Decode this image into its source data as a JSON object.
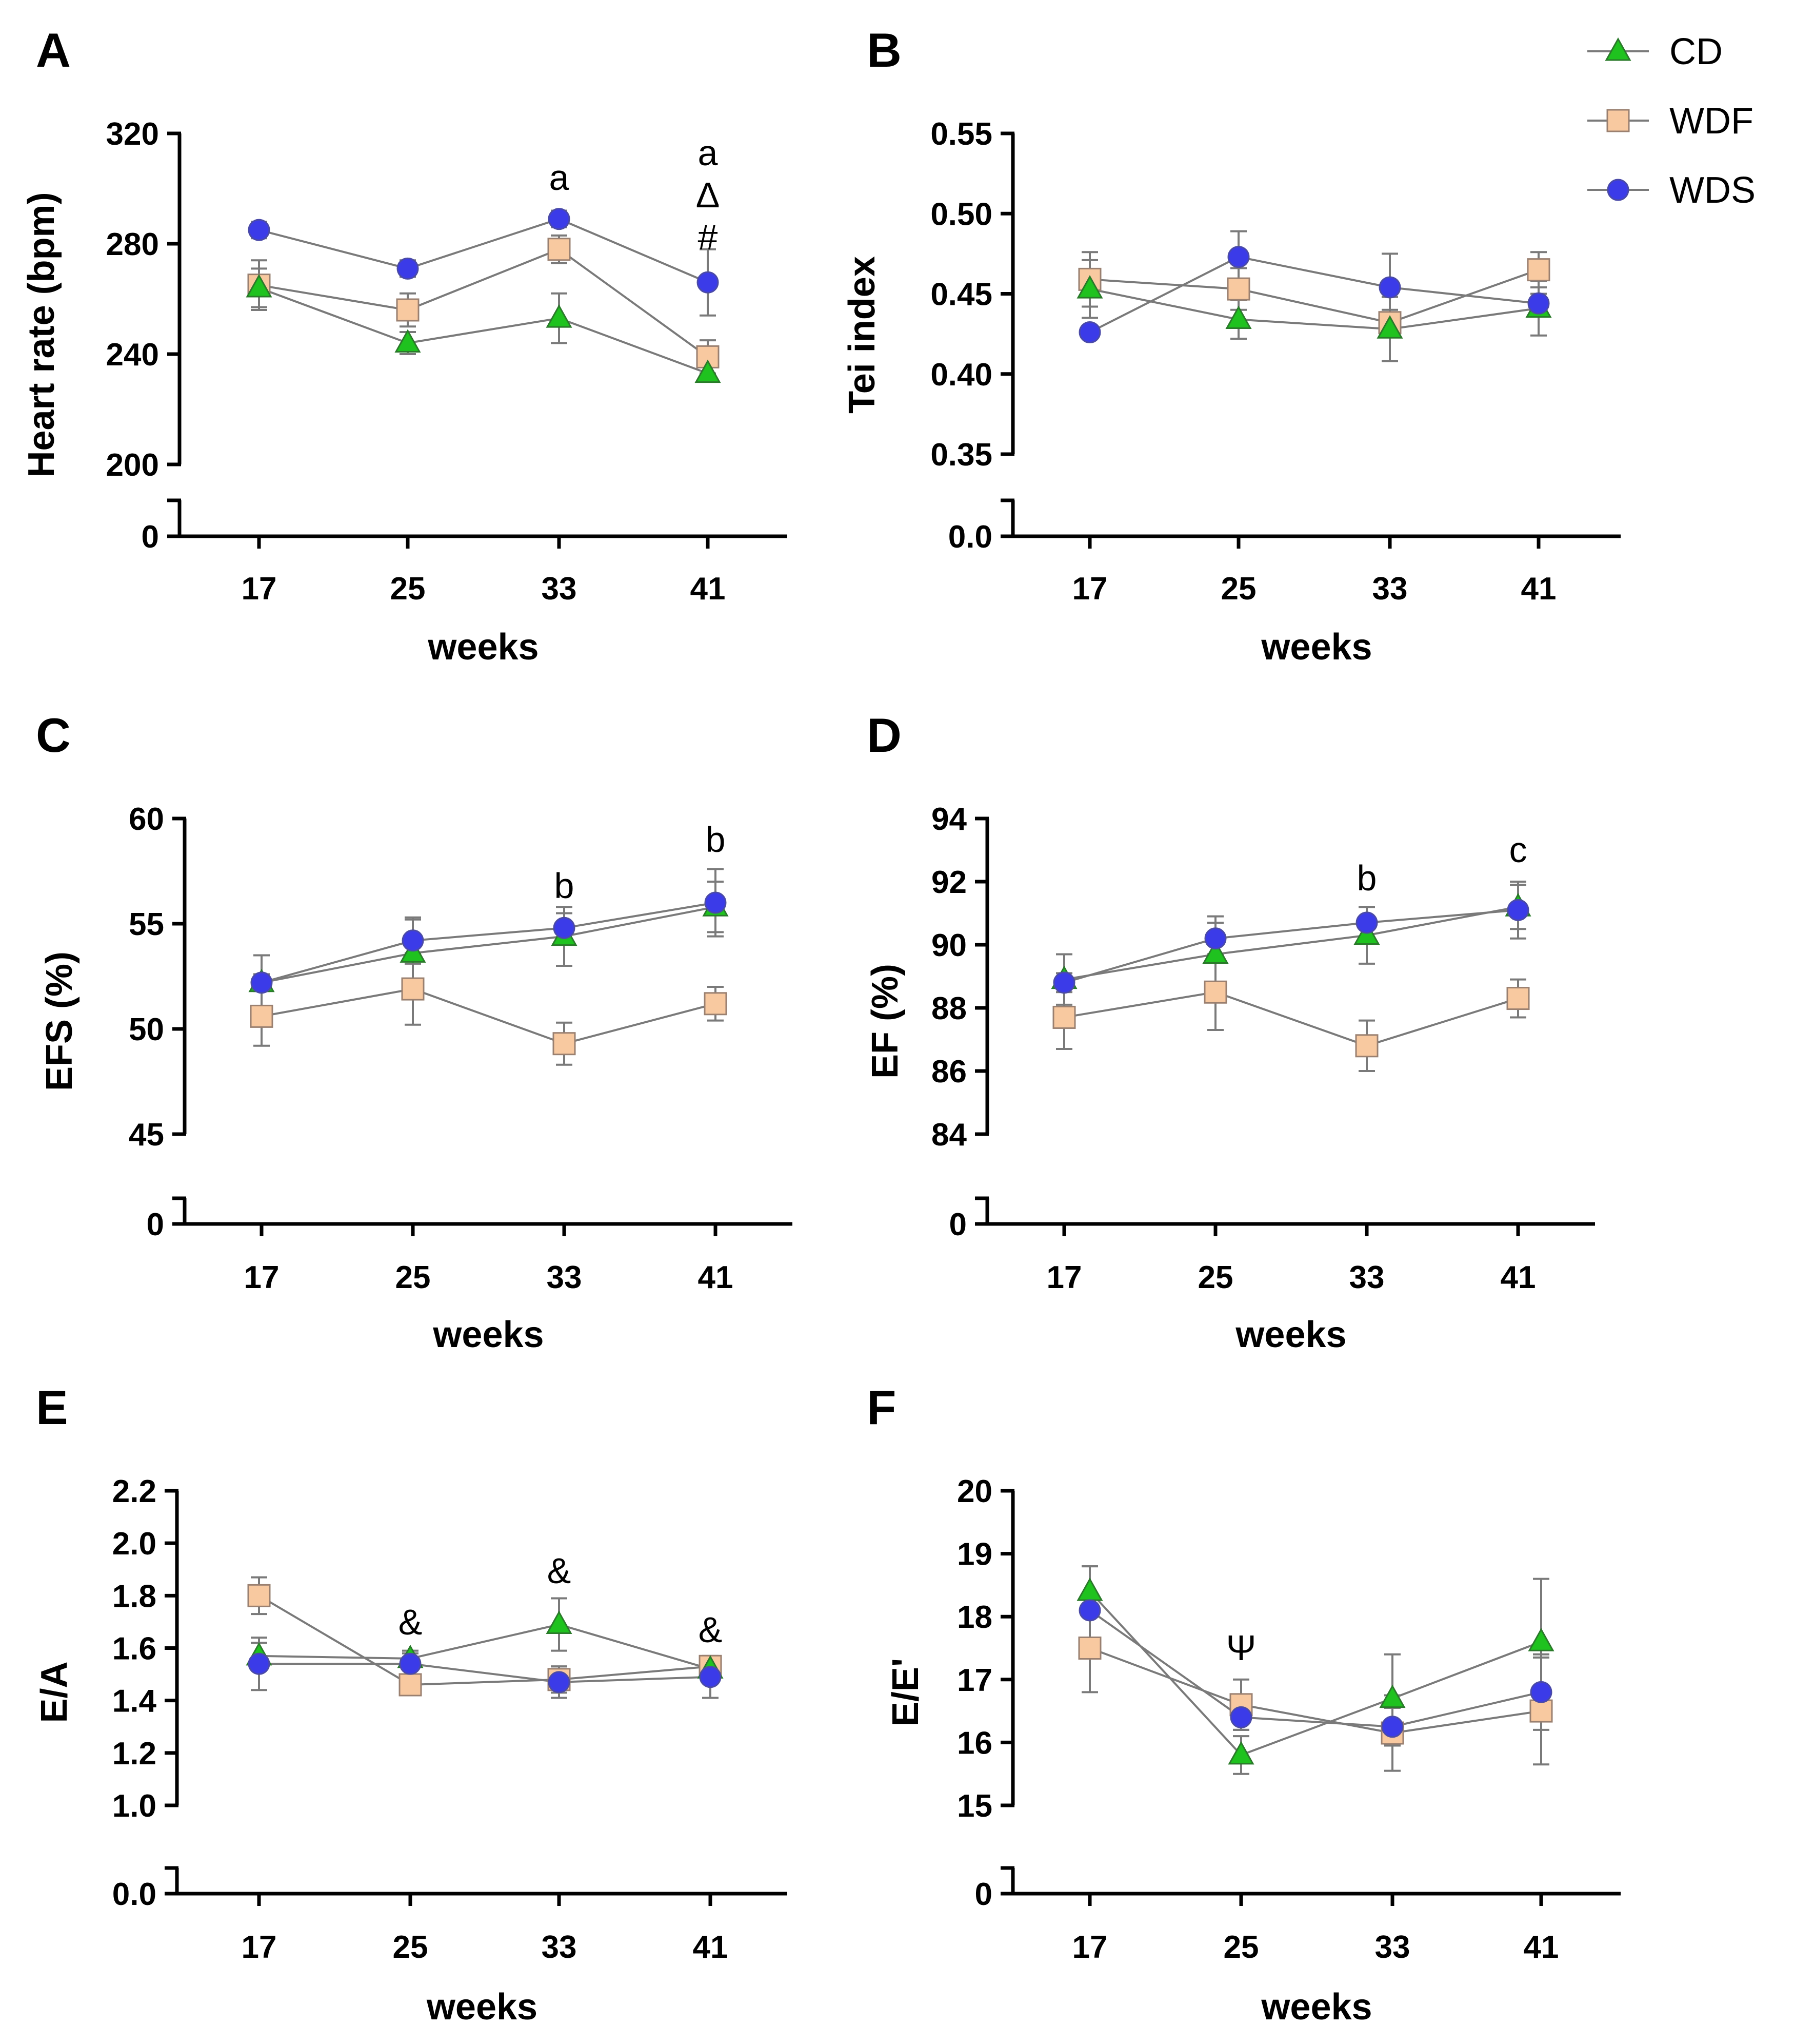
{
  "legend": [
    {
      "name": "CD",
      "marker": "triangle",
      "color": "#1fc21f"
    },
    {
      "name": "WDF",
      "marker": "square",
      "color": "#f8c9a0"
    },
    {
      "name": "WDS",
      "marker": "circle",
      "color": "#3b3be8"
    }
  ],
  "colors": {
    "line": "#7a7a7a",
    "error_bar": "#7a7a7a",
    "axis": "#000000",
    "marker_edge": "#555555"
  },
  "chart_data": [
    {
      "panel": "A",
      "type": "line",
      "xlabel": "weeks",
      "ylabel": "Heart rate (bpm)",
      "categories": [
        "17",
        "25",
        "33",
        "41"
      ],
      "ylim": [
        200,
        320
      ],
      "yticks": [
        "200",
        "240",
        "280",
        "320"
      ],
      "broken_axis_zero": "0",
      "series": [
        {
          "name": "CD",
          "values": [
            264,
            244,
            253,
            233
          ],
          "errors": [
            7,
            4,
            9,
            3
          ]
        },
        {
          "name": "WDF",
          "values": [
            265,
            256,
            278,
            239
          ],
          "errors": [
            9,
            6,
            5,
            6
          ]
        },
        {
          "name": "WDS",
          "values": [
            285,
            271,
            289,
            266
          ],
          "errors": [
            3,
            3,
            3,
            12
          ]
        }
      ],
      "annotations": [
        {
          "x": "33",
          "text": "a"
        },
        {
          "x": "41",
          "text": "a"
        },
        {
          "x": "41",
          "text": "Δ"
        },
        {
          "x": "41",
          "text": "#"
        }
      ]
    },
    {
      "panel": "B",
      "type": "line",
      "xlabel": "weeks",
      "ylabel": "Tei index",
      "categories": [
        "17",
        "25",
        "33",
        "41"
      ],
      "ylim": [
        0.35,
        0.55
      ],
      "yticks": [
        "0.35",
        "0.40",
        "0.45",
        "0.50",
        "0.55"
      ],
      "broken_axis_zero": "0.0",
      "series": [
        {
          "name": "CD",
          "values": [
            0.453,
            0.434,
            0.428,
            0.441
          ],
          "errors": [
            0.018,
            0.012,
            0.02,
            0.017
          ]
        },
        {
          "name": "WDF",
          "values": [
            0.459,
            0.453,
            0.432,
            0.465
          ],
          "errors": [
            0.017,
            0.013,
            0.008,
            0.011
          ]
        },
        {
          "name": "WDS",
          "values": [
            0.426,
            0.473,
            0.454,
            0.444
          ],
          "errors": [
            0.004,
            0.016,
            0.021,
            0.006
          ]
        }
      ],
      "annotations": []
    },
    {
      "panel": "C",
      "type": "line",
      "xlabel": "weeks",
      "ylabel": "EFS (%)",
      "categories": [
        "17",
        "25",
        "33",
        "41"
      ],
      "ylim": [
        45,
        60
      ],
      "yticks": [
        "45",
        "50",
        "55",
        "60"
      ],
      "broken_axis_zero": "0",
      "series": [
        {
          "name": "CD",
          "values": [
            52.2,
            53.6,
            54.4,
            55.8
          ],
          "errors": [
            1.3,
            1.6,
            1.4,
            1.2
          ]
        },
        {
          "name": "WDF",
          "values": [
            50.6,
            51.9,
            49.3,
            51.2
          ],
          "errors": [
            1.4,
            1.7,
            1.0,
            0.8
          ]
        },
        {
          "name": "WDS",
          "values": [
            52.2,
            54.2,
            54.8,
            56.0
          ],
          "errors": [
            0.4,
            1.1,
            0.7,
            1.6
          ]
        }
      ],
      "annotations": [
        {
          "x": "33",
          "text": "b"
        },
        {
          "x": "41",
          "text": "b"
        }
      ]
    },
    {
      "panel": "D",
      "type": "line",
      "xlabel": "weeks",
      "ylabel": "EF (%)",
      "categories": [
        "17",
        "25",
        "33",
        "41"
      ],
      "ylim": [
        84,
        94
      ],
      "yticks": [
        "84",
        "86",
        "88",
        "90",
        "92",
        "94"
      ],
      "broken_axis_zero": "0",
      "series": [
        {
          "name": "CD",
          "values": [
            88.9,
            89.7,
            90.3,
            91.2
          ],
          "errors": [
            0.8,
            1.0,
            0.9,
            0.7
          ]
        },
        {
          "name": "WDF",
          "values": [
            87.7,
            88.5,
            86.8,
            88.3
          ],
          "errors": [
            1.0,
            1.2,
            0.8,
            0.6
          ]
        },
        {
          "name": "WDS",
          "values": [
            88.8,
            90.2,
            90.7,
            91.1
          ],
          "errors": [
            0.3,
            0.7,
            0.5,
            0.9
          ]
        }
      ],
      "annotations": [
        {
          "x": "33",
          "text": "b"
        },
        {
          "x": "41",
          "text": "c"
        }
      ]
    },
    {
      "panel": "E",
      "type": "line",
      "xlabel": "weeks",
      "ylabel": "E/A",
      "categories": [
        "17",
        "25",
        "33",
        "41"
      ],
      "ylim": [
        1.0,
        2.2
      ],
      "yticks": [
        "1.0",
        "1.2",
        "1.4",
        "1.6",
        "1.8",
        "2.0",
        "2.2"
      ],
      "broken_axis_zero": "0.0",
      "series": [
        {
          "name": "CD",
          "values": [
            1.57,
            1.56,
            1.69,
            1.52
          ],
          "errors": [
            0.05,
            0.03,
            0.1,
            0.04
          ]
        },
        {
          "name": "WDF",
          "values": [
            1.8,
            1.46,
            1.48,
            1.53
          ],
          "errors": [
            0.07,
            0.02,
            0.05,
            0.04
          ]
        },
        {
          "name": "WDS",
          "values": [
            1.54,
            1.54,
            1.47,
            1.49
          ],
          "errors": [
            0.1,
            0.04,
            0.06,
            0.08
          ]
        }
      ],
      "annotations": [
        {
          "x": "25",
          "text": "&"
        },
        {
          "x": "33",
          "text": "&"
        },
        {
          "x": "41",
          "text": "&"
        }
      ]
    },
    {
      "panel": "F",
      "type": "line",
      "xlabel": "weeks",
      "ylabel": "E/E'",
      "categories": [
        "17",
        "25",
        "33",
        "41"
      ],
      "ylim": [
        15,
        20
      ],
      "yticks": [
        "15",
        "16",
        "17",
        "18",
        "19",
        "20"
      ],
      "broken_axis_zero": "0",
      "series": [
        {
          "name": "CD",
          "values": [
            18.4,
            15.8,
            16.7,
            17.6
          ],
          "errors": [
            0.4,
            0.3,
            0.7,
            1.0
          ]
        },
        {
          "name": "WDF",
          "values": [
            17.5,
            16.6,
            16.15,
            16.5
          ],
          "errors": [
            0.7,
            0.4,
            0.6,
            0.85
          ]
        },
        {
          "name": "WDS",
          "values": [
            18.1,
            16.4,
            16.25,
            16.8
          ],
          "errors": [
            0.7,
            0.2,
            0.3,
            0.6
          ]
        }
      ],
      "annotations": [
        {
          "x": "25",
          "text": "Ψ"
        }
      ]
    }
  ]
}
